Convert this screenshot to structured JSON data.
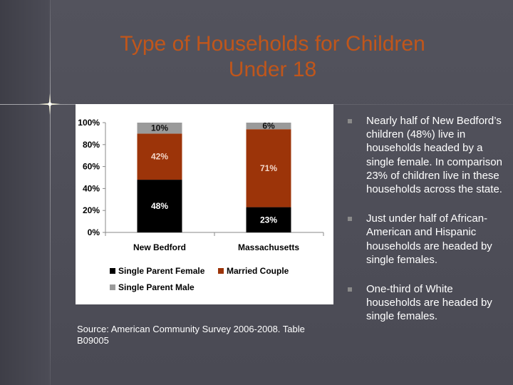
{
  "slide": {
    "title_line1": "Type of Households for Children",
    "title_line2": "Under 18",
    "source": "Source:  American Community Survey 2006-2008.  Table B09005",
    "bullets": [
      "Nearly half of New Bedford’s children (48%) live in households headed by a single female.  In comparison 23% of children live in these households across the state.",
      "Just under half of African-American and Hispanic households are headed by single females.",
      "One-third of White households are headed by single females."
    ]
  },
  "colors": {
    "title": "#c0561b",
    "single_parent_female": "#000000",
    "married_couple": "#9c3409",
    "single_parent_male": "#9a9a9a"
  },
  "chart_data": {
    "type": "bar",
    "stacked": true,
    "categories": [
      "New Bedford",
      "Massachusetts"
    ],
    "series": [
      {
        "name": "Single Parent Female",
        "values": [
          48,
          23
        ],
        "labels": [
          "48%",
          "23%"
        ],
        "color": "#000000"
      },
      {
        "name": "Married Couple",
        "values": [
          42,
          71
        ],
        "labels": [
          "42%",
          "71%"
        ],
        "color": "#9c3409"
      },
      {
        "name": "Single Parent Male",
        "values": [
          10,
          6
        ],
        "labels": [
          "10%",
          "6%"
        ],
        "color": "#9a9a9a"
      }
    ],
    "ylim": [
      0,
      100
    ],
    "yticks": [
      "0%",
      "20%",
      "40%",
      "60%",
      "80%",
      "100%"
    ],
    "ytick_values": [
      0,
      20,
      40,
      60,
      80,
      100
    ],
    "legend_position": "bottom",
    "grid": false
  }
}
